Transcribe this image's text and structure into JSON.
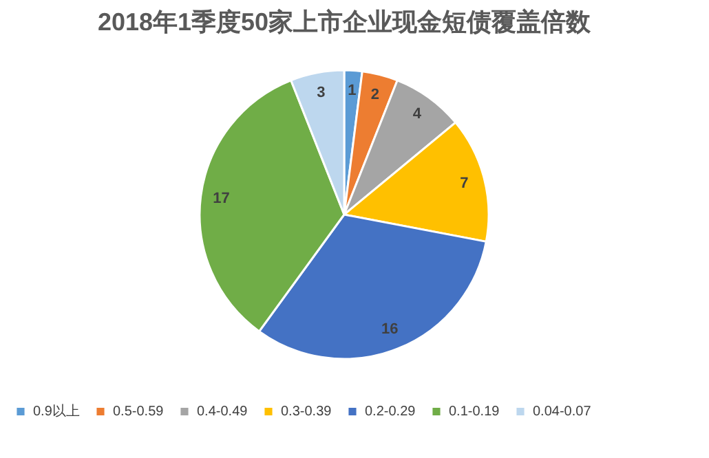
{
  "chart_data": {
    "type": "pie",
    "title": "2018年1季度50家上市企业现金短债覆盖倍数",
    "categories": [
      "0.9以上",
      "0.5-0.59",
      "0.4-0.49",
      "0.3-0.39",
      "0.2-0.29",
      "0.1-0.19",
      "0.04-0.07"
    ],
    "values": [
      1,
      2,
      4,
      7,
      16,
      17,
      3
    ],
    "colors": [
      "#5b9bd5",
      "#ed7d31",
      "#a5a5a5",
      "#ffc000",
      "#4472c4",
      "#70ad47",
      "#bdd7ee"
    ],
    "data_labels": true,
    "legend": "bottom"
  }
}
